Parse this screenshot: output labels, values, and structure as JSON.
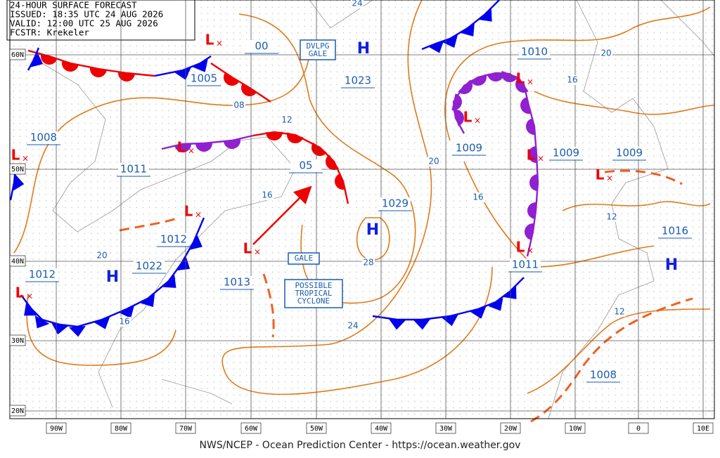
{
  "header": {
    "title": "24-HOUR SURFACE FORECAST",
    "issued": "ISSUED: 18:35 UTC 24 AUG 2026",
    "valid": "VALID:  12:00 UTC 25 AUG 2026",
    "forecaster": "FCSTR:  Krekeler"
  },
  "footer": "NWS/NCEP - Ocean Prediction Center - https://ocean.weather.gov",
  "latitude_labels": [
    "60N",
    "50N",
    "40N",
    "30N",
    "20N"
  ],
  "longitude_labels": [
    "90W",
    "80W",
    "70W",
    "60W",
    "50W",
    "40W",
    "30W",
    "20W",
    "10W",
    "0",
    "10E"
  ],
  "centers": [
    "L",
    "L",
    "L",
    "L",
    "L",
    "L",
    "L",
    "L",
    "L",
    "L",
    "L",
    "H",
    "H",
    "H",
    "H"
  ],
  "pressure_labels": [
    "1005",
    "00",
    "1023",
    "1010",
    "1008",
    "1011",
    "05",
    "1029",
    "1009",
    "1009",
    "1009",
    "1012",
    "1022",
    "1013",
    "1011",
    "1016",
    "1012",
    "1008"
  ],
  "isobar_labels": [
    "24",
    "20",
    "16",
    "08",
    "12",
    "16",
    "20",
    "16",
    "12",
    "20",
    "16",
    "28",
    "24",
    "12"
  ],
  "annotations": [
    "DVLPG GALE",
    "GALE",
    "POSSIBLE TROPICAL CYCLONE"
  ]
}
